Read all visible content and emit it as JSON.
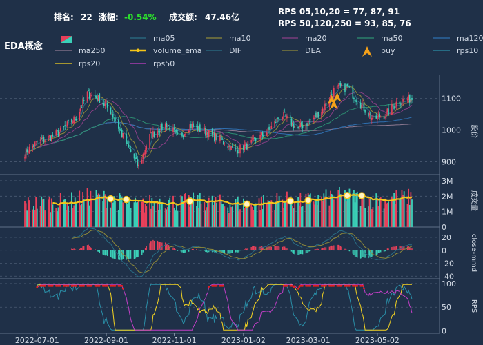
{
  "header": {
    "rank_label": "排名:",
    "rank_value": "22",
    "change_label": "涨幅:",
    "change_value": "-0.54%",
    "turnover_label": "成交额:",
    "turnover_value": "47.46亿",
    "rps_line1": "RPS 05,10,20 = 77, 87, 91",
    "rps_line2": "RPS 50,120,250 = 93, 85, 76",
    "title": "EDA概念"
  },
  "legend": [
    {
      "name": "ma05",
      "color": "#2a6f86"
    },
    {
      "name": "ma10",
      "color": "#8f8a3a"
    },
    {
      "name": "ma20",
      "color": "#8a3f86"
    },
    {
      "name": "ma50",
      "color": "#2d8f72"
    },
    {
      "name": "ma120",
      "color": "#2f6fb0"
    },
    {
      "name": "ma250",
      "color": "#8f7a92"
    },
    {
      "name": "volume_ema",
      "color": "#f5c518"
    },
    {
      "name": "DIF",
      "color": "#2a6f86"
    },
    {
      "name": "DEA",
      "color": "#8f8a3a"
    },
    {
      "name": "buy",
      "color": "#f4a11a"
    },
    {
      "name": "rps10",
      "color": "#2a8fa8"
    },
    {
      "name": "rps20",
      "color": "#f5d422"
    },
    {
      "name": "rps50",
      "color": "#c23fc6"
    }
  ],
  "colors": {
    "background": "#1f3048",
    "up": "#e8405a",
    "down": "#3bd0b8",
    "grid": "#4a5a72",
    "buy": "#f4a11a",
    "rps_high": "#e02020"
  },
  "chart_data": [
    {
      "type": "candlestick",
      "panel": "price",
      "ylabel": "股价",
      "yticks": [
        900,
        1000,
        1100
      ],
      "ylim": [
        860,
        1175
      ],
      "xticks": [
        "2022-07-01",
        "2022-09-01",
        "2022-11-01",
        "2023-01-02",
        "2023-03-01",
        "2023-05-02"
      ],
      "x_range": [
        "2022-06-20",
        "2023-06-02"
      ],
      "anchors": {
        "close_by_month": [
          [
            "2022-06-20",
            930
          ],
          [
            "2022-07-01",
            960
          ],
          [
            "2022-07-20",
            990
          ],
          [
            "2022-08-05",
            1040
          ],
          [
            "2022-08-15",
            1115
          ],
          [
            "2022-08-25",
            1100
          ],
          [
            "2022-09-05",
            1060
          ],
          [
            "2022-09-20",
            950
          ],
          [
            "2022-09-30",
            885
          ],
          [
            "2022-10-10",
            980
          ],
          [
            "2022-10-25",
            1020
          ],
          [
            "2022-11-05",
            975
          ],
          [
            "2022-11-15",
            1015
          ],
          [
            "2022-11-25",
            1000
          ],
          [
            "2022-12-10",
            975
          ],
          [
            "2022-12-25",
            935
          ],
          [
            "2023-01-10",
            960
          ],
          [
            "2023-01-25",
            1000
          ],
          [
            "2023-02-05",
            1050
          ],
          [
            "2023-02-20",
            1005
          ],
          [
            "2023-03-05",
            1035
          ],
          [
            "2023-03-15",
            1070
          ],
          [
            "2023-03-25",
            1130
          ],
          [
            "2023-04-05",
            1135
          ],
          [
            "2023-04-15",
            1090
          ],
          [
            "2023-04-28",
            1035
          ],
          [
            "2023-05-10",
            1050
          ],
          [
            "2023-05-20",
            1090
          ],
          [
            "2023-06-02",
            1100
          ]
        ]
      },
      "buy_signals": [
        "2023-03-22",
        "2023-03-24",
        "2023-03-27"
      ]
    },
    {
      "type": "bar",
      "panel": "volume",
      "ylabel": "成交量",
      "yticks_labels": [
        "1M",
        "2M",
        "3M"
      ],
      "yticks": [
        1,
        2,
        3
      ],
      "ylim": [
        0,
        3.4
      ],
      "series": [
        {
          "name": "volume_ema"
        }
      ]
    },
    {
      "type": "line",
      "panel": "macd",
      "ylabel": "close-mmd",
      "yticks": [
        -40,
        -20,
        0,
        20
      ],
      "ylim": [
        -44,
        36
      ],
      "series": [
        {
          "name": "DIF"
        },
        {
          "name": "DEA"
        }
      ]
    },
    {
      "type": "line",
      "panel": "rps",
      "ylabel": "RPS",
      "yticks": [
        0,
        50,
        100
      ],
      "ylim": [
        -5,
        110
      ],
      "series": [
        {
          "name": "rps10"
        },
        {
          "name": "rps20"
        },
        {
          "name": "rps50"
        }
      ]
    }
  ]
}
